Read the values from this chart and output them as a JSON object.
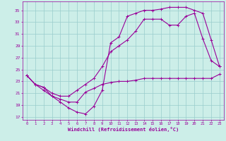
{
  "xlabel": "Windchill (Refroidissement éolien,°C)",
  "bg_color": "#cceee8",
  "grid_color": "#99cccc",
  "line_color": "#990099",
  "x_ticks": [
    0,
    1,
    2,
    3,
    4,
    5,
    6,
    7,
    8,
    9,
    10,
    11,
    12,
    13,
    14,
    15,
    16,
    17,
    18,
    19,
    20,
    21,
    22,
    23
  ],
  "ylim": [
    16.5,
    36.5
  ],
  "y_ticks": [
    17,
    19,
    21,
    23,
    25,
    27,
    29,
    31,
    33,
    35
  ],
  "line1_x": [
    0,
    1,
    2,
    3,
    4,
    5,
    6,
    7,
    8,
    9,
    10,
    11,
    12,
    13,
    14,
    15,
    16,
    17,
    18,
    19,
    20,
    21,
    22,
    23
  ],
  "line1_y": [
    24.0,
    22.5,
    22.0,
    20.5,
    20.0,
    19.5,
    19.5,
    21.2,
    21.8,
    22.5,
    22.8,
    23.0,
    23.0,
    23.2,
    23.5,
    23.5,
    23.5,
    23.5,
    23.5,
    23.5,
    23.5,
    23.5,
    23.5,
    24.2
  ],
  "line2_x": [
    0,
    1,
    2,
    3,
    4,
    5,
    6,
    7,
    8,
    9,
    10,
    11,
    12,
    13,
    14,
    15,
    16,
    17,
    18,
    19,
    20,
    21,
    22,
    23
  ],
  "line2_y": [
    24.0,
    22.5,
    22.0,
    21.0,
    20.5,
    20.5,
    21.5,
    22.5,
    23.5,
    25.5,
    28.0,
    29.0,
    30.0,
    31.5,
    33.5,
    33.5,
    33.5,
    32.5,
    32.5,
    34.0,
    34.5,
    30.2,
    26.5,
    25.5
  ],
  "line3_x": [
    0,
    1,
    2,
    3,
    4,
    5,
    6,
    7,
    8,
    9,
    10,
    11,
    12,
    13,
    14,
    15,
    16,
    17,
    18,
    19,
    20,
    21,
    22,
    23
  ],
  "line3_y": [
    24.0,
    22.5,
    21.5,
    20.5,
    19.5,
    18.5,
    17.8,
    17.5,
    18.8,
    21.5,
    29.5,
    30.5,
    34.0,
    34.5,
    35.0,
    35.0,
    35.2,
    35.5,
    35.5,
    35.5,
    35.0,
    34.5,
    30.0,
    25.5
  ]
}
